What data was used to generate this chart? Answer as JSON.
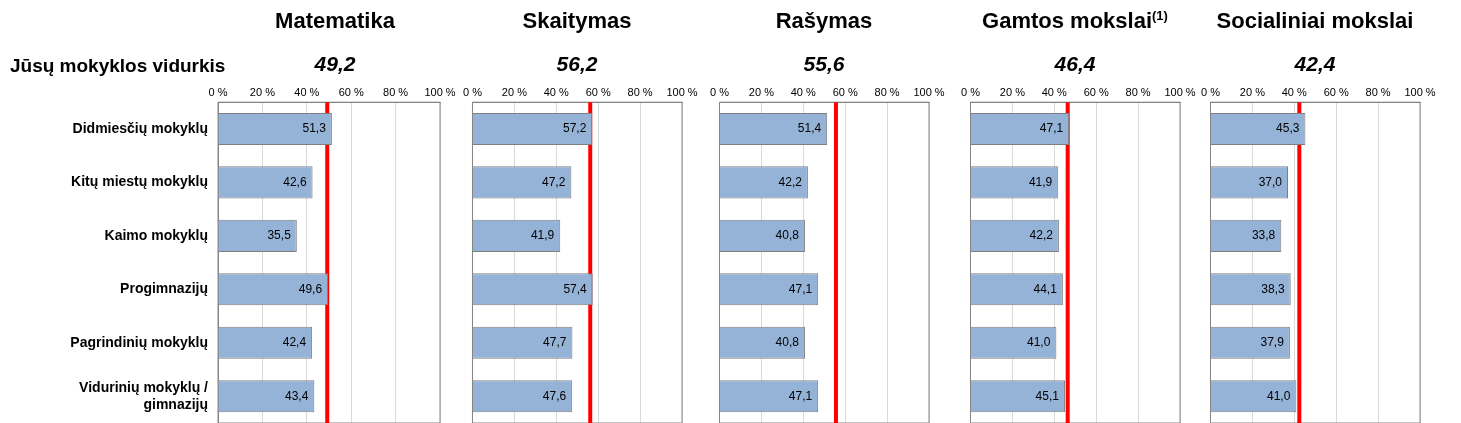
{
  "chart_data": [
    {
      "type": "bar",
      "orientation": "horizontal",
      "title": "Matematika",
      "annotations": [
        "Jūsų mokyklos vidurkis"
      ],
      "categories": [
        "Didmiesčių mokyklų",
        "Kitų miestų mokyklų",
        "Kaimo mokyklų",
        "Progimnazijų",
        "Pagrindinių mokyklų",
        "Vidurinių mokyklų / gimnazijų"
      ],
      "values": [
        51.3,
        42.6,
        35.5,
        49.6,
        42.4,
        43.4
      ],
      "value_labels": [
        "51,3",
        "42,6",
        "35,5",
        "49,6",
        "42,4",
        "43,4"
      ],
      "color": "#95b3d7",
      "xlim": [
        0,
        100
      ],
      "xticks": [
        {
          "value": 0,
          "label": "0 %"
        },
        {
          "value": 20,
          "label": "20 %"
        },
        {
          "value": 40,
          "label": "40 %"
        },
        {
          "value": 60,
          "label": "60 %"
        },
        {
          "value": 80,
          "label": "80 %"
        },
        {
          "value": 100,
          "label": "100 %"
        }
      ],
      "grid": "x",
      "ref_lines": [
        {
          "axis": "x",
          "value": 49.2,
          "label": "49,2",
          "color": "#ff0000"
        }
      ]
    },
    {
      "type": "bar",
      "orientation": "horizontal",
      "title": "Skaitymas",
      "categories": [
        null,
        null,
        null,
        null,
        null,
        null
      ],
      "values": [
        57.2,
        47.2,
        41.9,
        57.4,
        47.7,
        47.6
      ],
      "value_labels": [
        "57,2",
        "47,2",
        "41,9",
        "57,4",
        "47,7",
        "47,6"
      ],
      "color": "#95b3d7",
      "xlim": [
        0,
        100
      ],
      "xticks": [
        {
          "value": 0,
          "label": "0 %"
        },
        {
          "value": 20,
          "label": "20 %"
        },
        {
          "value": 40,
          "label": "40 %"
        },
        {
          "value": 60,
          "label": "60 %"
        },
        {
          "value": 80,
          "label": "80 %"
        },
        {
          "value": 100,
          "label": "100 %"
        }
      ],
      "grid": "x",
      "tick_labels": "x",
      "ref_lines": [
        {
          "axis": "x",
          "value": 56.2,
          "label": "56,2",
          "color": "#ff0000"
        }
      ]
    },
    {
      "type": "bar",
      "orientation": "horizontal",
      "title": "Rašymas",
      "categories": [
        null,
        null,
        null,
        null,
        null,
        null
      ],
      "values": [
        51.4,
        42.2,
        40.8,
        47.1,
        40.8,
        47.1
      ],
      "value_labels": [
        "51,4",
        "42,2",
        "40,8",
        "47,1",
        "40,8",
        "47,1"
      ],
      "color": "#95b3d7",
      "xlim": [
        0,
        100
      ],
      "xticks": [
        {
          "value": 0,
          "label": "0 %"
        },
        {
          "value": 20,
          "label": "20 %"
        },
        {
          "value": 40,
          "label": "40 %"
        },
        {
          "value": 60,
          "label": "60 %"
        },
        {
          "value": 80,
          "label": "80 %"
        },
        {
          "value": 100,
          "label": "100 %"
        }
      ],
      "grid": "x",
      "tick_labels": "x",
      "ref_lines": [
        {
          "axis": "x",
          "value": 55.6,
          "label": "55,6",
          "color": "#ff0000"
        }
      ]
    },
    {
      "type": "bar",
      "orientation": "horizontal",
      "title": "Gamtos mokslai$^{(1)}$",
      "categories": [
        null,
        null,
        null,
        null,
        null,
        null
      ],
      "values": [
        47.1,
        41.9,
        42.2,
        44.1,
        41.0,
        45.1
      ],
      "value_labels": [
        "47,1",
        "41,9",
        "42,2",
        "44,1",
        "41,0",
        "45,1"
      ],
      "color": "#95b3d7",
      "xlim": [
        0,
        100
      ],
      "xticks": [
        {
          "value": 0,
          "label": "0 %"
        },
        {
          "value": 20,
          "label": "20 %"
        },
        {
          "value": 40,
          "label": "40 %"
        },
        {
          "value": 60,
          "label": "60 %"
        },
        {
          "value": 80,
          "label": "80 %"
        },
        {
          "value": 100,
          "label": "100 %"
        }
      ],
      "grid": "x",
      "tick_labels": "x",
      "ref_lines": [
        {
          "axis": "x",
          "value": 46.4,
          "label": "46,4",
          "color": "#ff0000"
        }
      ]
    },
    {
      "type": "bar",
      "orientation": "horizontal",
      "title": "Socialiniai mokslai",
      "categories": [
        null,
        null,
        null,
        null,
        null,
        null
      ],
      "values": [
        45.3,
        37.0,
        33.8,
        38.3,
        37.9,
        41.0
      ],
      "value_labels": [
        "45,3",
        "37,0",
        "33,8",
        "38,3",
        "37,9",
        "41,0"
      ],
      "color": "#95b3d7",
      "xlim": [
        0,
        100
      ],
      "xticks": [
        {
          "value": 0,
          "label": "0 %"
        },
        {
          "value": 20,
          "label": "20 %"
        },
        {
          "value": 40,
          "label": "40 %"
        },
        {
          "value": 60,
          "label": "60 %"
        },
        {
          "value": 80,
          "label": "80 %"
        },
        {
          "value": 100,
          "label": "100 %"
        }
      ],
      "grid": "x",
      "tick_labels": "x",
      "ref_lines": [
        {
          "axis": "x",
          "value": 42.4,
          "label": "42,4",
          "color": "#ff0000"
        }
      ]
    }
  ]
}
